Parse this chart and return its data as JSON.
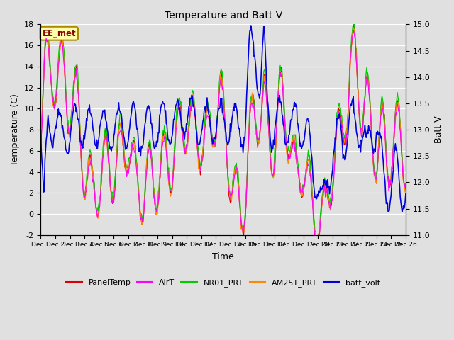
{
  "title": "Temperature and Batt V",
  "xlabel": "Time",
  "ylabel_left": "Temperature (C)",
  "ylabel_right": "Batt V",
  "ylim_left": [
    -2,
    18
  ],
  "ylim_right": [
    11.0,
    15.0
  ],
  "yticks_left": [
    -2,
    0,
    2,
    4,
    6,
    8,
    10,
    12,
    14,
    16,
    18
  ],
  "yticks_right": [
    11.0,
    11.5,
    12.0,
    12.5,
    13.0,
    13.5,
    14.0,
    14.5,
    15.0
  ],
  "annotation_text": "EE_met",
  "bg_color": "#e0e0e0",
  "grid_color": "#ffffff",
  "series_colors": {
    "PanelTemp": "#dd0000",
    "AirT": "#ff00ff",
    "NR01_PRT": "#00cc00",
    "AM25T_PRT": "#ff8800",
    "batt_volt": "#0000dd"
  },
  "legend_entries": [
    "PanelTemp",
    "AirT",
    "NR01_PRT",
    "AM25T_PRT",
    "batt_volt"
  ],
  "legend_colors": [
    "#dd0000",
    "#ff00ff",
    "#00cc00",
    "#ff8800",
    "#0000dd"
  ]
}
